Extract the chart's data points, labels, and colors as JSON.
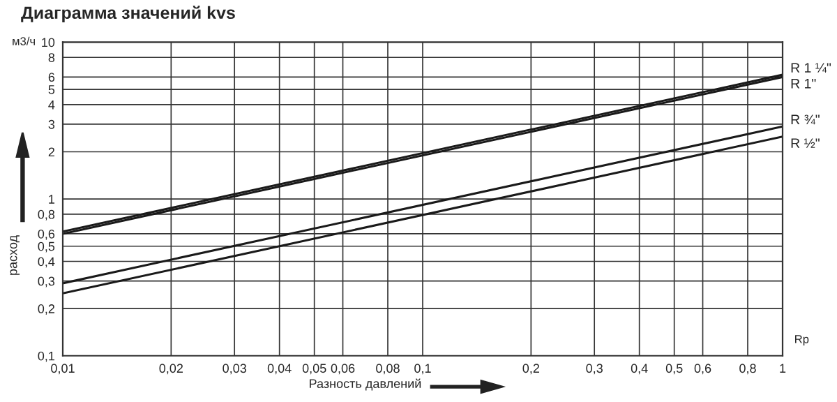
{
  "chart_data": {
    "type": "line",
    "title": "Диаграмма значений kvs",
    "xlabel": "Разность давлений",
    "ylabel": "расход",
    "annotations": [
      "м3/ч",
      "Rp"
    ],
    "x": [
      0.01,
      1
    ],
    "series": [
      {
        "name": "R 1 ¼\"",
        "color": "#1a1a1a",
        "values": [
          0.62,
          6.2
        ]
      },
      {
        "name": "R 1\"",
        "color": "#1a1a1a",
        "values": [
          0.6,
          6.0
        ]
      },
      {
        "name": "R ¾\"",
        "color": "#1a1a1a",
        "values": [
          0.29,
          2.9
        ]
      },
      {
        "name": "R ½\"",
        "color": "#1a1a1a",
        "values": [
          0.25,
          2.5
        ]
      }
    ],
    "log": "xy",
    "xlim": [
      0.01,
      1
    ],
    "ylim": [
      0.1,
      10
    ],
    "xticks": [
      {
        "value": 0.01,
        "label": "0,01"
      },
      {
        "value": 0.02,
        "label": "0,02"
      },
      {
        "value": 0.03,
        "label": "0,03"
      },
      {
        "value": 0.04,
        "label": "0,04"
      },
      {
        "value": 0.05,
        "label": "0,05"
      },
      {
        "value": 0.06,
        "label": "0,06"
      },
      {
        "value": 0.08,
        "label": "0,08"
      },
      {
        "value": 0.1,
        "label": "0,1"
      },
      {
        "value": 0.2,
        "label": "0,2"
      },
      {
        "value": 0.3,
        "label": "0,3"
      },
      {
        "value": 0.4,
        "label": "0,4"
      },
      {
        "value": 0.5,
        "label": "0,5"
      },
      {
        "value": 0.6,
        "label": "0,6"
      },
      {
        "value": 0.8,
        "label": "0,8"
      },
      1
    ],
    "yticks": [
      {
        "value": 0.1,
        "label": "0,1"
      },
      {
        "value": 0.2,
        "label": "0,2"
      },
      {
        "value": 0.3,
        "label": "0,3"
      },
      {
        "value": 0.4,
        "label": "0,4"
      },
      {
        "value": 0.5,
        "label": "0,5"
      },
      {
        "value": 0.6,
        "label": "0,6"
      },
      {
        "value": 0.8,
        "label": "0,8"
      },
      1,
      2,
      3,
      4,
      5,
      6,
      8,
      10
    ],
    "grid": true,
    "legend": false,
    "marker": "none",
    "line_style": "solid"
  }
}
